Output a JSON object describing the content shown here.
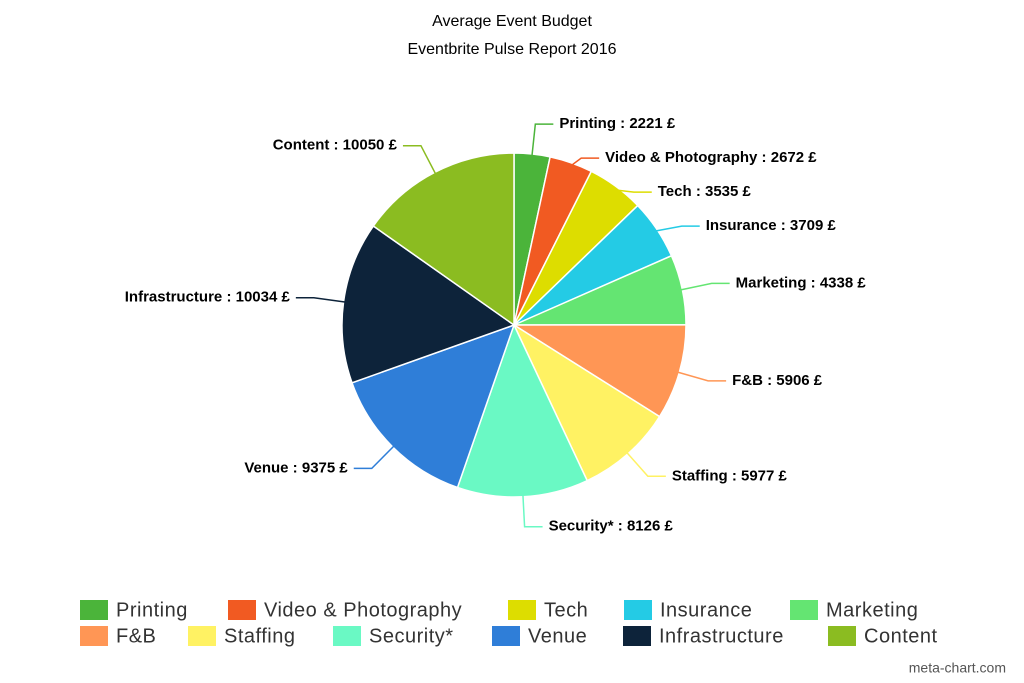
{
  "chart_data": {
    "type": "pie",
    "title": "Average Event Budget",
    "subtitle": "Eventbrite Pulse Report 2016",
    "categories": [
      "Printing",
      "Video & Photography",
      "Tech",
      "Insurance",
      "Marketing",
      "F&B",
      "Staffing",
      "Security*",
      "Venue",
      "Infrastructure",
      "Content"
    ],
    "values": [
      2221,
      2672,
      3535,
      3709,
      4338,
      5906,
      5977,
      8126,
      9375,
      10034,
      10050
    ],
    "value_labels": [
      "Printing : 2221 £",
      "Video & Photography : 2672 £",
      "Tech : 3535 £",
      "Insurance : 3709 £",
      "Marketing : 4338 £",
      "F&B : 5906 £",
      "Staffing : 5977 £",
      "Security* : 8126 £",
      "Venue : 9375 £",
      "Infrastructure : 10034 £",
      "Content : 10050 £"
    ],
    "colors": [
      "#4bb43a",
      "#f15a22",
      "#dddd00",
      "#24cbe5",
      "#64e572",
      "#ff9655",
      "#fff263",
      "#6af9c4",
      "#2f7ed8",
      "#0d233a",
      "#8bbc21"
    ],
    "legend": "bottom",
    "watermark": "meta-chart.com"
  }
}
